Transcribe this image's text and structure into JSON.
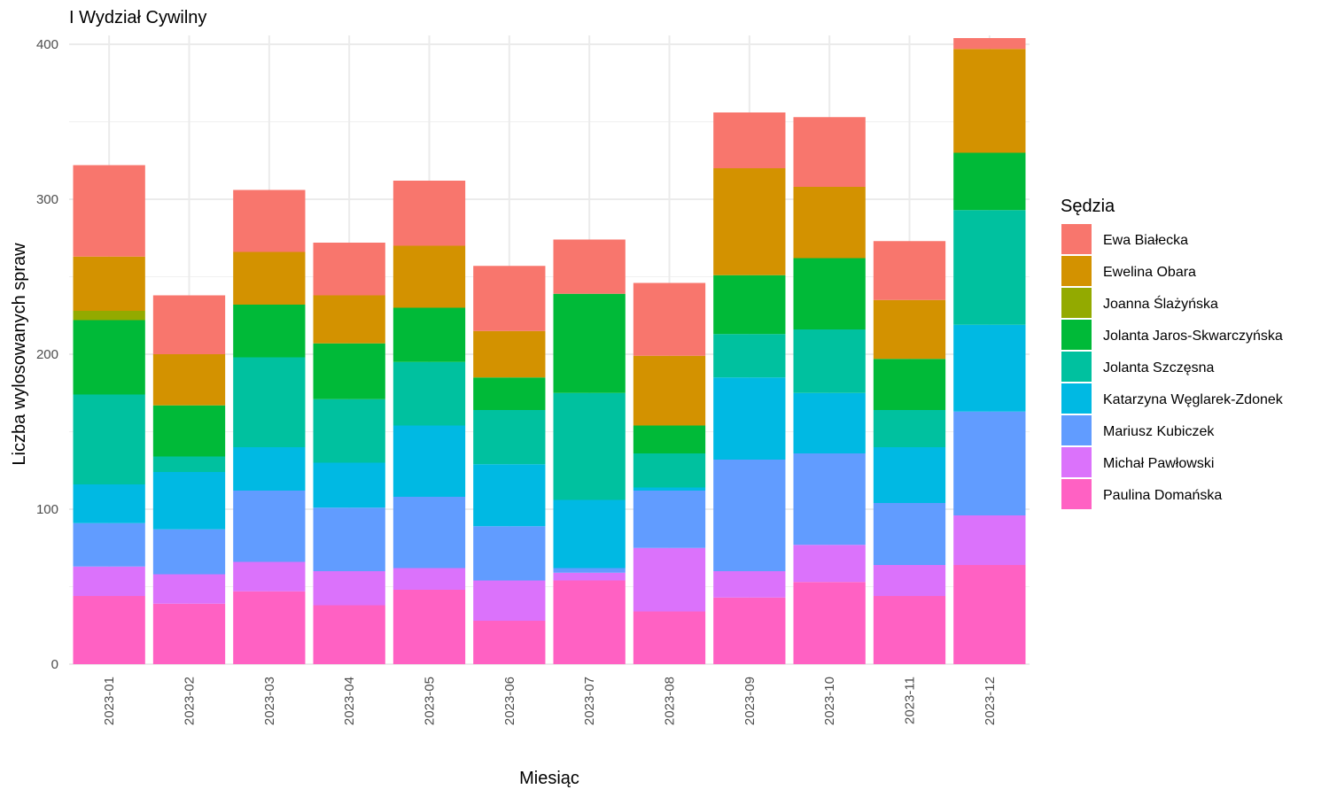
{
  "chart_data": {
    "type": "bar",
    "stacked": true,
    "title": "I Wydział Cywilny",
    "xlabel": "Miesiąc",
    "ylabel": "Liczba wylosowanych spraw",
    "ylim": [
      0,
      400
    ],
    "yticks": [
      0,
      100,
      200,
      300,
      400
    ],
    "grid": true,
    "legend_position": "right",
    "legend_title": "Sędzia",
    "categories": [
      "2023-01",
      "2023-02",
      "2023-03",
      "2023-04",
      "2023-05",
      "2023-06",
      "2023-07",
      "2023-08",
      "2023-09",
      "2023-10",
      "2023-11",
      "2023-12"
    ],
    "series": [
      {
        "name": "Ewa Białecka",
        "color": "#F8766D",
        "values": [
          59,
          38,
          40,
          34,
          42,
          42,
          35,
          47,
          36,
          45,
          38,
          7
        ]
      },
      {
        "name": "Ewelina Obara",
        "color": "#D39200",
        "values": [
          35,
          33,
          34,
          31,
          40,
          30,
          0,
          45,
          69,
          46,
          38,
          67
        ]
      },
      {
        "name": "Joanna Ślażyńska",
        "color": "#93AA00",
        "values": [
          6,
          0,
          0,
          0,
          0,
          0,
          0,
          0,
          0,
          0,
          0,
          0
        ]
      },
      {
        "name": "Jolanta Jaros-Skwarczyńska",
        "color": "#00BA38",
        "values": [
          48,
          33,
          34,
          36,
          35,
          21,
          64,
          18,
          38,
          46,
          33,
          37
        ]
      },
      {
        "name": "Jolanta Szczęsna",
        "color": "#00C19F",
        "values": [
          58,
          10,
          58,
          41,
          41,
          35,
          69,
          22,
          28,
          41,
          24,
          74
        ]
      },
      {
        "name": "Katarzyna Węglarek-Zdonek",
        "color": "#00B9E3",
        "values": [
          25,
          37,
          28,
          29,
          46,
          40,
          44,
          2,
          53,
          39,
          36,
          56
        ]
      },
      {
        "name": "Mariusz Kubiczek",
        "color": "#619CFF",
        "values": [
          28,
          29,
          46,
          41,
          46,
          35,
          3,
          37,
          72,
          59,
          40,
          67
        ]
      },
      {
        "name": "Michał Pawłowski",
        "color": "#DB72FB",
        "values": [
          19,
          19,
          19,
          22,
          14,
          26,
          5,
          41,
          17,
          24,
          20,
          32
        ]
      },
      {
        "name": "Paulina Domańska",
        "color": "#FF61C3",
        "values": [
          44,
          39,
          47,
          38,
          48,
          28,
          54,
          34,
          43,
          53,
          44,
          64
        ]
      }
    ]
  }
}
